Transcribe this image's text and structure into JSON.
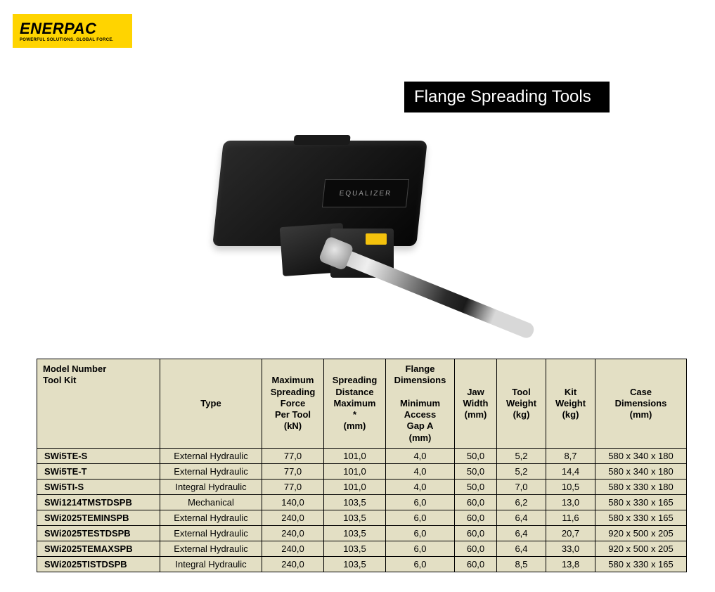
{
  "logo": {
    "brand": "ENERPAC",
    "tagline": "POWERFUL SOLUTIONS. GLOBAL FORCE."
  },
  "title": "Flange Spreading Tools",
  "case_label": "EQUALIZER",
  "colors": {
    "brand_yellow": "#ffd400",
    "table_bg": "#e3dfc4",
    "border": "#000000",
    "title_bg": "#000000",
    "title_fg": "#ffffff",
    "page_bg": "#ffffff"
  },
  "table": {
    "headers": {
      "model": "Model Number\nTool Kit",
      "type": "Type",
      "force": "Maximum\nSpreading\nForce\nPer Tool\n(kN)",
      "dist": "Spreading\nDistance\nMaximum\n*\n(mm)",
      "flange": "Flange\nDimensions\n\nMinimum\nAccess\nGap A\n(mm)",
      "jaw": "Jaw\nWidth\n(mm)",
      "tool_wt": "Tool\nWeight\n(kg)",
      "kit_wt": "Kit\nWeight\n(kg)",
      "case": "Case\nDimensions\n(mm)"
    },
    "rows": [
      {
        "model": "SWi5TE-S",
        "type": "External Hydraulic",
        "force": "77,0",
        "dist": "101,0",
        "flange": "4,0",
        "jaw": "50,0",
        "tw": "5,2",
        "kw": "8,7",
        "case": "580 x 340 x 180"
      },
      {
        "model": "SWi5TE-T",
        "type": "External Hydraulic",
        "force": "77,0",
        "dist": "101,0",
        "flange": "4,0",
        "jaw": "50,0",
        "tw": "5,2",
        "kw": "14,4",
        "case": "580 x 340 x 180"
      },
      {
        "model": "SWi5TI-S",
        "type": "Integral Hydraulic",
        "force": "77,0",
        "dist": "101,0",
        "flange": "4,0",
        "jaw": "50,0",
        "tw": "7,0",
        "kw": "10,5",
        "case": "580 x 330 x 180"
      },
      {
        "model": "SWi1214TMSTDSPB",
        "type": "Mechanical",
        "force": "140,0",
        "dist": "103,5",
        "flange": "6,0",
        "jaw": "60,0",
        "tw": "6,2",
        "kw": "13,0",
        "case": "580 x 330 x 165"
      },
      {
        "model": "SWi2025TEMINSPB",
        "type": "External Hydraulic",
        "force": "240,0",
        "dist": "103,5",
        "flange": "6,0",
        "jaw": "60,0",
        "tw": "6,4",
        "kw": "11,6",
        "case": "580 x 330 x 165"
      },
      {
        "model": "SWi2025TESTDSPB",
        "type": "External Hydraulic",
        "force": "240,0",
        "dist": "103,5",
        "flange": "6,0",
        "jaw": "60,0",
        "tw": "6,4",
        "kw": "20,7",
        "case": "920 x 500 x 205"
      },
      {
        "model": "SWi2025TEMAXSPB",
        "type": "External Hydraulic",
        "force": "240,0",
        "dist": "103,5",
        "flange": "6,0",
        "jaw": "60,0",
        "tw": "6,4",
        "kw": "33,0",
        "case": "920 x 500 x 205"
      },
      {
        "model": "SWi2025TISTDSPB",
        "type": "Integral Hydraulic",
        "force": "240,0",
        "dist": "103,5",
        "flange": "6,0",
        "jaw": "60,0",
        "tw": "8,5",
        "kw": "13,8",
        "case": "580 x 330 x 165"
      }
    ]
  }
}
